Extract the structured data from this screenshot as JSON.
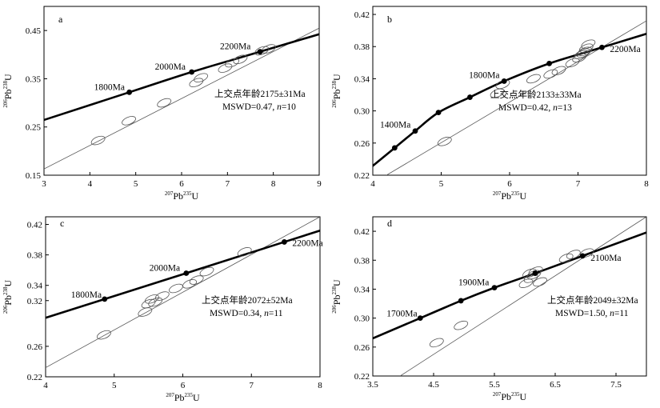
{
  "chart_data": [
    {
      "type": "scatter",
      "panel": "a",
      "xlabel": {
        "sup": "207",
        "base1": "Pb",
        "sup2": "235",
        "base2": "U"
      },
      "ylabel": {
        "sup": "206",
        "base1": "Pb",
        "sup2": "238",
        "base2": "U"
      },
      "xlim": [
        3,
        9
      ],
      "ylim": [
        0.15,
        0.5
      ],
      "xticks": [
        3,
        4,
        5,
        6,
        7,
        8,
        9
      ],
      "yticks": [
        0.15,
        0.25,
        0.35,
        0.45
      ],
      "concordia_points": [
        {
          "age": "1800Ma",
          "x": 4.86,
          "y": 0.322
        },
        {
          "age": "2000Ma",
          "x": 6.22,
          "y": 0.364
        },
        {
          "age": "2200Ma",
          "x": 7.71,
          "y": 0.406
        }
      ],
      "discordia": {
        "x1": 3.0,
        "y1": 0.163,
        "x2": 9.0,
        "y2": 0.455
      },
      "ellipses": [
        {
          "x": 4.18,
          "y": 0.222
        },
        {
          "x": 4.85,
          "y": 0.263
        },
        {
          "x": 5.62,
          "y": 0.3
        },
        {
          "x": 6.32,
          "y": 0.342
        },
        {
          "x": 6.42,
          "y": 0.352
        },
        {
          "x": 6.95,
          "y": 0.372
        },
        {
          "x": 7.1,
          "y": 0.383
        },
        {
          "x": 7.28,
          "y": 0.39
        },
        {
          "x": 7.75,
          "y": 0.408
        },
        {
          "x": 7.9,
          "y": 0.412
        }
      ],
      "annotation": {
        "line1": "上交点年龄2175±31Ma",
        "mswd": "MSWD=0.47, ",
        "n_label": "n",
        "n_value": "=10"
      }
    },
    {
      "type": "scatter",
      "panel": "b",
      "xlabel": {
        "sup": "207",
        "base1": "Pb",
        "sup2": "235",
        "base2": "U"
      },
      "ylabel": {
        "sup": "206",
        "base1": "Pb",
        "sup2": "238",
        "base2": "U"
      },
      "xlim": [
        4,
        8
      ],
      "ylim": [
        0.22,
        0.43
      ],
      "xticks": [
        4,
        5,
        6,
        7,
        8
      ],
      "yticks": [
        0.22,
        0.26,
        0.3,
        0.34,
        0.38,
        0.42
      ],
      "concordia_points": [
        {
          "age": "",
          "x": 4.32,
          "y": 0.254
        },
        {
          "age": "1400Ma",
          "x": 4.62,
          "y": 0.275
        },
        {
          "age": "",
          "x": 4.96,
          "y": 0.298
        },
        {
          "age": "",
          "x": 5.42,
          "y": 0.317
        },
        {
          "age": "1800Ma",
          "x": 5.92,
          "y": 0.337
        },
        {
          "age": "",
          "x": 6.58,
          "y": 0.359
        },
        {
          "age": "2200Ma",
          "x": 7.35,
          "y": 0.379
        }
      ],
      "discordia": {
        "x1": 4.2,
        "y1": 0.22,
        "x2": 8.0,
        "y2": 0.412
      },
      "ellipses": [
        {
          "x": 5.05,
          "y": 0.262
        },
        {
          "x": 5.82,
          "y": 0.322
        },
        {
          "x": 5.9,
          "y": 0.333
        },
        {
          "x": 6.35,
          "y": 0.34
        },
        {
          "x": 6.6,
          "y": 0.346
        },
        {
          "x": 6.72,
          "y": 0.35
        },
        {
          "x": 6.92,
          "y": 0.36
        },
        {
          "x": 7.02,
          "y": 0.366
        },
        {
          "x": 7.08,
          "y": 0.372
        },
        {
          "x": 7.12,
          "y": 0.378
        },
        {
          "x": 7.15,
          "y": 0.383
        },
        {
          "x": 7.05,
          "y": 0.37
        },
        {
          "x": 7.1,
          "y": 0.374
        }
      ],
      "annotation": {
        "line1": "上交点年龄2133±33Ma",
        "mswd": "MSWD=0.42, ",
        "n_label": "n",
        "n_value": "=13"
      }
    },
    {
      "type": "scatter",
      "panel": "c",
      "xlabel": {
        "sup": "207",
        "base1": "Pb",
        "sup2": "235",
        "base2": "U"
      },
      "ylabel": {
        "sup": "206",
        "base1": "Pb",
        "sup2": "238",
        "base2": "U"
      },
      "xlim": [
        4,
        8
      ],
      "ylim": [
        0.22,
        0.43
      ],
      "xticks": [
        4,
        5,
        6,
        7,
        8
      ],
      "yticks": [
        0.22,
        0.26,
        0.32,
        0.34,
        0.38,
        0.42
      ],
      "concordia_points": [
        {
          "age": "1800Ma",
          "x": 4.86,
          "y": 0.322
        },
        {
          "age": "2000Ma",
          "x": 6.05,
          "y": 0.356
        },
        {
          "age": "2200Ma",
          "x": 7.48,
          "y": 0.397
        }
      ],
      "discordia": {
        "x1": 4.0,
        "y1": 0.232,
        "x2": 8.0,
        "y2": 0.43
      },
      "ellipses": [
        {
          "x": 4.85,
          "y": 0.275
        },
        {
          "x": 5.45,
          "y": 0.305
        },
        {
          "x": 5.5,
          "y": 0.316
        },
        {
          "x": 5.55,
          "y": 0.322
        },
        {
          "x": 5.6,
          "y": 0.318
        },
        {
          "x": 5.9,
          "y": 0.336
        },
        {
          "x": 6.1,
          "y": 0.342
        },
        {
          "x": 6.2,
          "y": 0.347
        },
        {
          "x": 6.35,
          "y": 0.358
        },
        {
          "x": 6.9,
          "y": 0.384
        },
        {
          "x": 5.7,
          "y": 0.326
        }
      ],
      "annotation": {
        "line1": "上交点年龄2072±52Ma",
        "mswd": "MSWD=0.34, ",
        "n_label": "n",
        "n_value": "=11"
      }
    },
    {
      "type": "scatter",
      "panel": "d",
      "xlabel": {
        "sup": "207",
        "base1": "Pb",
        "sup2": "235",
        "base2": "U"
      },
      "ylabel": {
        "sup": "206",
        "base1": "Pb",
        "sup2": "238",
        "base2": "U"
      },
      "xlim": [
        3.5,
        8.0
      ],
      "ylim": [
        0.22,
        0.44
      ],
      "xticks": [
        3.5,
        4.5,
        5.5,
        6.5,
        7.5
      ],
      "yticks": [
        0.22,
        0.26,
        0.3,
        0.34,
        0.38,
        0.42
      ],
      "concordia_points": [
        {
          "age": "1700Ma",
          "x": 4.28,
          "y": 0.3
        },
        {
          "age": "",
          "x": 4.95,
          "y": 0.324
        },
        {
          "age": "1900Ma",
          "x": 5.5,
          "y": 0.342
        },
        {
          "age": "",
          "x": 6.17,
          "y": 0.362
        },
        {
          "age": "2100Ma",
          "x": 6.95,
          "y": 0.386
        }
      ],
      "discordia": {
        "x1": 3.95,
        "y1": 0.22,
        "x2": 8.0,
        "y2": 0.44
      },
      "ellipses": [
        {
          "x": 4.55,
          "y": 0.266
        },
        {
          "x": 4.95,
          "y": 0.29
        },
        {
          "x": 6.02,
          "y": 0.348
        },
        {
          "x": 6.1,
          "y": 0.355
        },
        {
          "x": 6.15,
          "y": 0.36
        },
        {
          "x": 6.18,
          "y": 0.365
        },
        {
          "x": 6.08,
          "y": 0.362
        },
        {
          "x": 6.25,
          "y": 0.35
        },
        {
          "x": 6.68,
          "y": 0.383
        },
        {
          "x": 6.8,
          "y": 0.388
        },
        {
          "x": 7.02,
          "y": 0.39
        }
      ],
      "annotation": {
        "line1": "上交点年龄2049±32Ma",
        "mswd": "MSWD=1.50, ",
        "n_label": "n",
        "n_value": "=11"
      }
    }
  ]
}
